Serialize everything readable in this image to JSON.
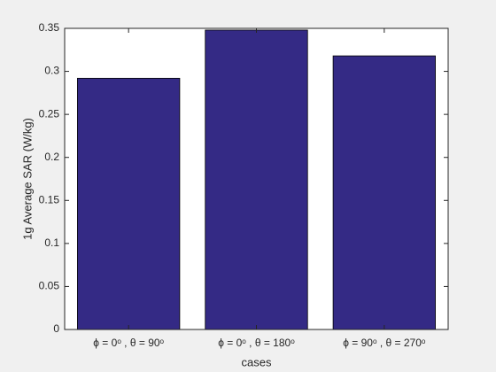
{
  "chart_data": {
    "type": "bar",
    "categories": [
      "ϕ = 0ᵒ , θ = 90ᵒ",
      "ϕ = 0ᵒ , θ = 180ᵒ",
      "ϕ = 90ᵒ , θ = 270ᵒ"
    ],
    "values": [
      0.292,
      0.348,
      0.318
    ],
    "color": "#342a85",
    "x_label": "cases",
    "y_label": "1g Average SAR (W/kg)",
    "ylim": [
      0,
      0.35
    ],
    "yticks": [
      0,
      0.05,
      0.1,
      0.15,
      0.2,
      0.25,
      0.3,
      0.35
    ]
  }
}
